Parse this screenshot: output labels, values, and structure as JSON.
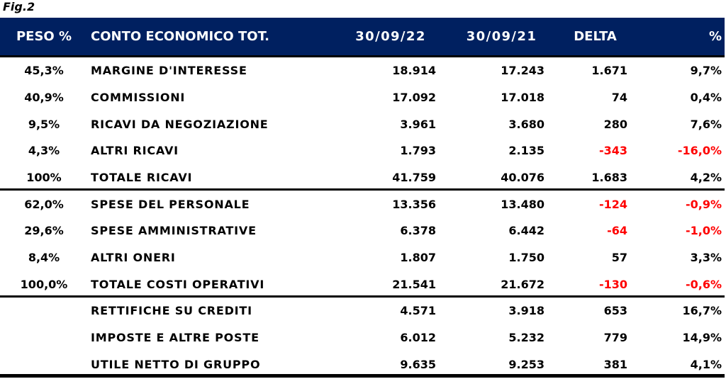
{
  "figure_label": "Fig.2",
  "colors": {
    "header_background": "#002060",
    "header_text": "#ffffff",
    "body_text": "#000000",
    "negative_text": "#ff0000",
    "rule": "#000000"
  },
  "chart_data": {
    "type": "table",
    "title": "Fig.2",
    "columns": [
      {
        "key": "peso",
        "label": "PESO %",
        "align": "center"
      },
      {
        "key": "voce",
        "label": "CONTO ECONOMICO TOT.",
        "align": "left"
      },
      {
        "key": "v2022",
        "label": "30/09/22",
        "align": "right"
      },
      {
        "key": "v2021",
        "label": "30/09/21",
        "align": "right"
      },
      {
        "key": "delta",
        "label": "DELTA",
        "align": "right"
      },
      {
        "key": "pct",
        "label": "%",
        "align": "right"
      }
    ],
    "rows": [
      {
        "peso": "45,3%",
        "voce": "MARGINE D'INTERESSE",
        "v2022": "18.914",
        "v2021": "17.243",
        "delta": "1.671",
        "pct": "9,7%"
      },
      {
        "peso": "40,9%",
        "voce": "COMMISSIONI",
        "v2022": "17.092",
        "v2021": "17.018",
        "delta": "74",
        "pct": "0,4%"
      },
      {
        "peso": "9,5%",
        "voce": "RICAVI DA NEGOZIAZIONE",
        "v2022": "3.961",
        "v2021": "3.680",
        "delta": "280",
        "pct": "7,6%"
      },
      {
        "peso": "4,3%",
        "voce": "ALTRI RICAVI",
        "v2022": "1.793",
        "v2021": "2.135",
        "delta": "-343",
        "pct": "-16,0%"
      },
      {
        "peso": "100%",
        "voce": "TOTALE RICAVI",
        "v2022": "41.759",
        "v2021": "40.076",
        "delta": "1.683",
        "pct": "4,2%",
        "section_end": true
      },
      {
        "peso": "62,0%",
        "voce": "SPESE DEL PERSONALE",
        "v2022": "13.356",
        "v2021": "13.480",
        "delta": "-124",
        "pct": "-0,9%"
      },
      {
        "peso": "29,6%",
        "voce": "SPESE AMMINISTRATIVE",
        "v2022": "6.378",
        "v2021": "6.442",
        "delta": "-64",
        "pct": "-1,0%"
      },
      {
        "peso": "8,4%",
        "voce": "ALTRI ONERI",
        "v2022": "1.807",
        "v2021": "1.750",
        "delta": "57",
        "pct": "3,3%"
      },
      {
        "peso": "100,0%",
        "voce": "TOTALE COSTI OPERATIVI",
        "v2022": "21.541",
        "v2021": "21.672",
        "delta": "-130",
        "pct": "-0,6%",
        "section_end": true
      },
      {
        "peso": "",
        "voce": "RETTIFICHE SU CREDITI",
        "v2022": "4.571",
        "v2021": "3.918",
        "delta": "653",
        "pct": "16,7%"
      },
      {
        "peso": "",
        "voce": "IMPOSTE E ALTRE POSTE",
        "v2022": "6.012",
        "v2021": "5.232",
        "delta": "779",
        "pct": "14,9%"
      },
      {
        "peso": "",
        "voce": "UTILE NETTO DI GRUPPO",
        "v2022": "9.635",
        "v2021": "9.253",
        "delta": "381",
        "pct": "4,1%"
      }
    ]
  }
}
